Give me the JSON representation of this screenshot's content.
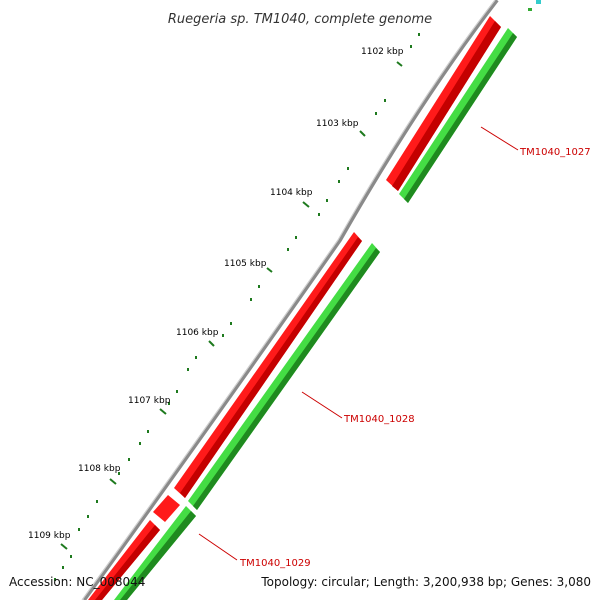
{
  "title": "Ruegeria sp. TM1040, complete genome",
  "ticks": [
    {
      "label": "1102 kbp"
    },
    {
      "label": "1103 kbp"
    },
    {
      "label": "1104 kbp"
    },
    {
      "label": "1105 kbp"
    },
    {
      "label": "1106 kbp"
    },
    {
      "label": "1107 kbp"
    },
    {
      "label": "1108 kbp"
    },
    {
      "label": "1109 kbp"
    }
  ],
  "genes": [
    {
      "label": "TM1040_1027"
    },
    {
      "label": "TM1040_1028"
    },
    {
      "label": "TM1040_1029"
    }
  ],
  "footer": {
    "accession": "Accession: NC_008044",
    "summary": "Topology: circular; Length: 3,200,938 bp; Genes: 3,080"
  },
  "colors": {
    "forward_feature": "#e00000",
    "reverse_feature": "#2db52d",
    "backbone": "#8a8a8a",
    "tick": "#1e7a1e",
    "label": "#cc0000"
  }
}
